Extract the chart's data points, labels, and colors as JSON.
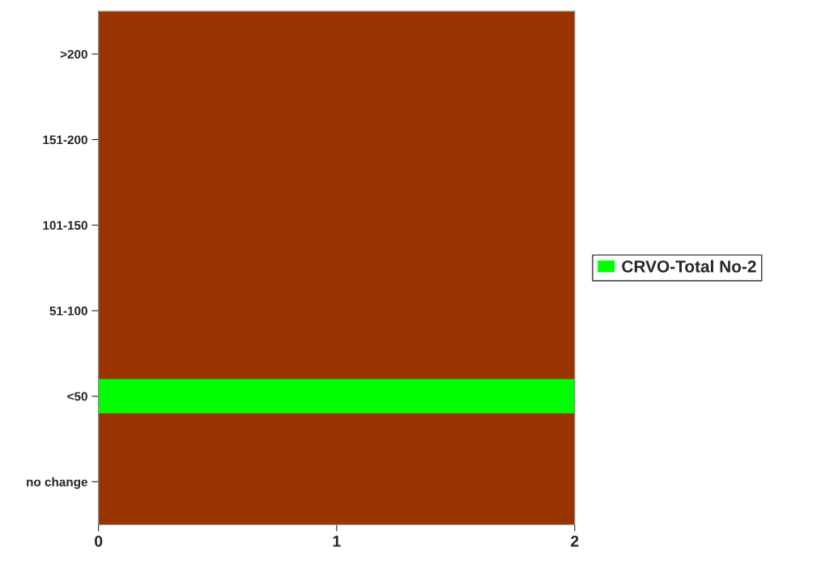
{
  "chart_data": {
    "type": "bar",
    "orientation": "horizontal",
    "categories": [
      ">200",
      "151-200",
      "101-150",
      "51-100",
      "<50",
      "no change"
    ],
    "series": [
      {
        "name": "CRVO-Total No-2",
        "color": "#00ff00",
        "values": [
          0,
          0,
          0,
          0,
          2,
          0
        ]
      }
    ],
    "xlim": [
      0,
      2
    ],
    "xticks": [
      0,
      1,
      2
    ],
    "grid": false,
    "legend": "right"
  }
}
